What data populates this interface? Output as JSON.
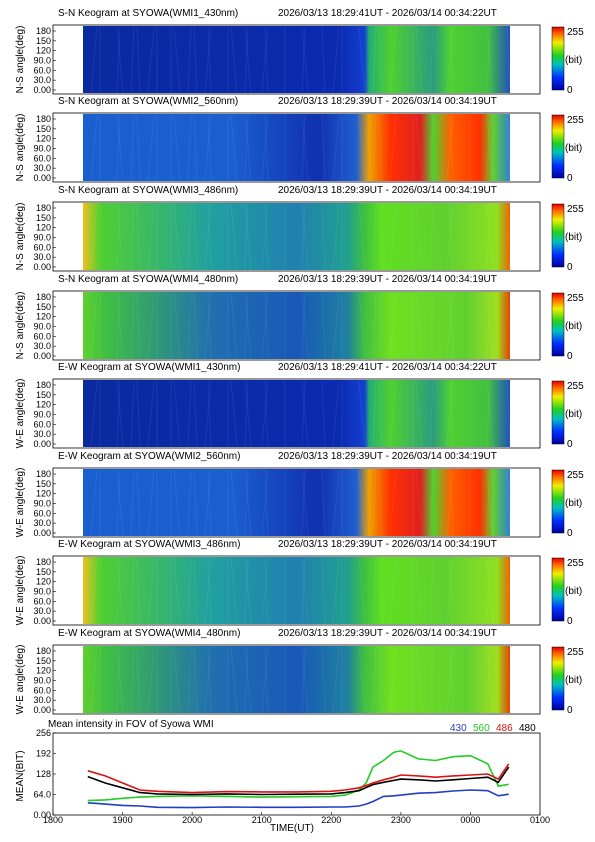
{
  "colors": {
    "c430": "#1f3fbf",
    "c560": "#22cc22",
    "c486": "#dd1111",
    "c480": "#000000"
  },
  "colorbar": {
    "max": "255",
    "unit": "(bit)",
    "min": "0"
  },
  "ylabel_ns": "N-S angle(deg)",
  "ylabel_ew": "W-E angle(deg)",
  "angle_ticks": [
    "180",
    "150",
    "120",
    "90.0",
    "60.0",
    "30.0",
    "0.00"
  ],
  "keograms": [
    {
      "title": "S-N Keogram at SYOWA(WMI1_430nm)",
      "range": "2026/03/13 18:29:41UT - 2026/03/14 00:34:22UT",
      "axis": "ns",
      "channel": "430"
    },
    {
      "title": "S-N Keogram at SYOWA(WMI2_560nm)",
      "range": "2026/03/13 18:29:39UT - 2026/03/14 00:34:19UT",
      "axis": "ns",
      "channel": "560"
    },
    {
      "title": "S-N Keogram at SYOWA(WMI3_486nm)",
      "range": "2026/03/13 18:29:39UT - 2026/03/14 00:34:19UT",
      "axis": "ns",
      "channel": "486"
    },
    {
      "title": "S-N Keogram at SYOWA(WMI4_480nm)",
      "range": "2026/03/13 18:29:39UT - 2026/03/14 00:34:19UT",
      "axis": "ns",
      "channel": "480"
    },
    {
      "title": "E-W Keogram at SYOWA(WMI1_430nm)",
      "range": "2026/03/13 18:29:41UT - 2026/03/14 00:34:22UT",
      "axis": "ew",
      "channel": "430"
    },
    {
      "title": "E-W Keogram at SYOWA(WMI2_560nm)",
      "range": "2026/03/13 18:29:39UT - 2026/03/14 00:34:19UT",
      "axis": "ew",
      "channel": "560"
    },
    {
      "title": "E-W Keogram at SYOWA(WMI3_486nm)",
      "range": "2026/03/13 18:29:39UT - 2026/03/14 00:34:19UT",
      "axis": "ew",
      "channel": "486"
    },
    {
      "title": "E-W Keogram at SYOWA(WMI4_480nm)",
      "range": "2026/03/13 18:29:39UT - 2026/03/14 00:34:19UT",
      "axis": "ew",
      "channel": "480"
    }
  ],
  "chart_data": {
    "type": "line",
    "title": "Mean intensity in FOV of Syowa WMI",
    "xlabel": "TIME(UT)",
    "ylabel": "MEAN(BIT)",
    "x_ticks": [
      "1800",
      "1900",
      "2000",
      "2100",
      "2200",
      "2300",
      "0000",
      "0100"
    ],
    "y_ticks": [
      "256",
      "192",
      "128",
      "64.0",
      "0.00"
    ],
    "xlim": [
      18.0,
      25.0
    ],
    "ylim": [
      0,
      256
    ],
    "grid": false,
    "legend": "top-right",
    "x_hours": [
      18.5,
      18.75,
      19.0,
      19.25,
      19.5,
      20.0,
      20.5,
      21.0,
      21.5,
      22.0,
      22.2,
      22.4,
      22.5,
      22.6,
      22.75,
      22.9,
      23.0,
      23.25,
      23.5,
      23.75,
      24.0,
      24.25,
      24.4,
      24.55
    ],
    "series": [
      {
        "name": "430",
        "color_key": "c430",
        "values": [
          38,
          34,
          30,
          28,
          24,
          23,
          25,
          24,
          24,
          25,
          25,
          28,
          34,
          42,
          58,
          60,
          62,
          68,
          70,
          75,
          78,
          76,
          60,
          65
        ]
      },
      {
        "name": "560",
        "color_key": "c560",
        "values": [
          45,
          47,
          52,
          56,
          58,
          60,
          58,
          56,
          57,
          58,
          62,
          78,
          100,
          150,
          170,
          196,
          200,
          175,
          170,
          182,
          185,
          160,
          90,
          96
        ]
      },
      {
        "name": "486",
        "color_key": "c486",
        "values": [
          138,
          122,
          100,
          78,
          74,
          70,
          73,
          72,
          72,
          74,
          78,
          85,
          92,
          100,
          110,
          118,
          125,
          122,
          118,
          122,
          125,
          128,
          112,
          160
        ]
      },
      {
        "name": "480",
        "color_key": "c480",
        "values": [
          120,
          100,
          85,
          70,
          66,
          64,
          66,
          64,
          65,
          66,
          70,
          76,
          86,
          95,
          102,
          108,
          112,
          110,
          106,
          110,
          114,
          118,
          102,
          150
        ]
      }
    ]
  }
}
